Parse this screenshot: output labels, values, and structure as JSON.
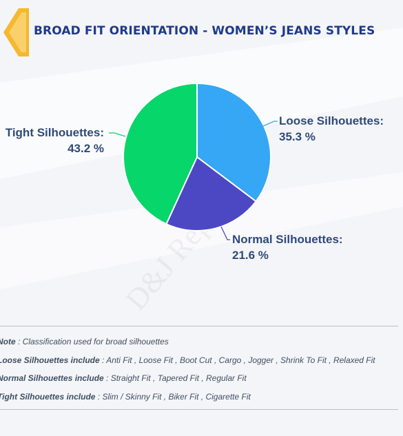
{
  "header": {
    "title": "BROAD FIT ORIENTATION - WOMEN’S JEANS STYLES",
    "accent_color": "#f5b82e",
    "title_color": "#1f3a8a"
  },
  "chart_data": {
    "type": "pie",
    "series": [
      {
        "name": "Loose Silhouettes",
        "label": "Loose Silhouettes:",
        "value": 35.3,
        "value_label": "35.3 %",
        "color": "#35a7f4"
      },
      {
        "name": "Normal Silhouettes",
        "label": "Normal Silhouettes:",
        "value": 21.6,
        "value_label": "21.6 %",
        "color": "#4c48c4"
      },
      {
        "name": "Tight Silhouettes",
        "label": "Tight Silhouettes:",
        "value": 43.2,
        "value_label": "43.2 %",
        "color": "#07d66a"
      }
    ],
    "start": "top",
    "direction": "clockwise"
  },
  "watermark": "D&J Reports",
  "notes": {
    "note": {
      "label": "Note",
      "text": " : Classification used for broad silhouettes"
    },
    "loose": {
      "label": "Loose Silhouettes include",
      "text": " : Anti Fit , Loose Fit , Boot Cut , Cargo , Jogger , Shrink To Fit , Relaxed Fit"
    },
    "normal": {
      "label": "Normal Silhouettes include",
      "text": " : Straight Fit , Tapered Fit , Regular Fit"
    },
    "tight": {
      "label": "Tight Silhouettes include",
      "text": " : Slim / Skinny Fit , Biker Fit , Cigarette Fit"
    }
  }
}
